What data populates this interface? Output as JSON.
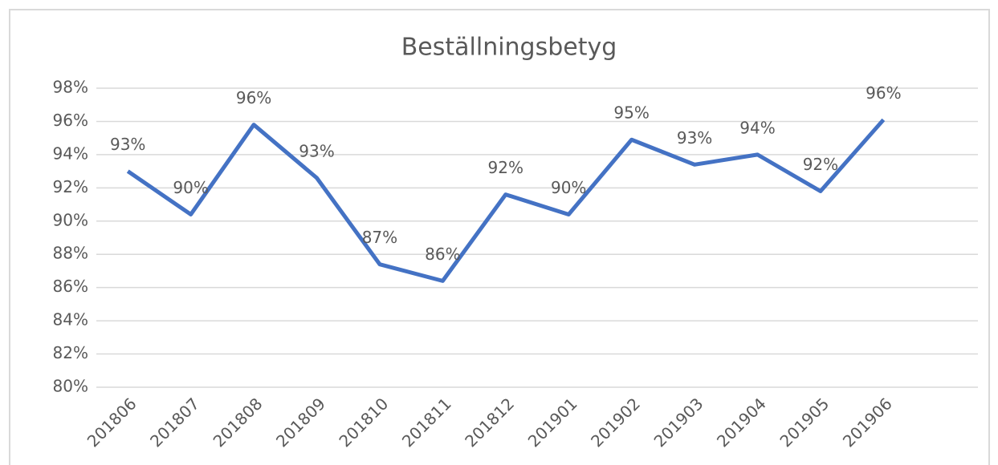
{
  "chart_data": {
    "type": "line",
    "title": "Beställningsbetyg",
    "categories": [
      "201806",
      "201807",
      "201808",
      "201809",
      "201810",
      "201811",
      "201812",
      "201901",
      "201902",
      "201903",
      "201904",
      "201905",
      "201906",
      null
    ],
    "series": [
      {
        "color": "#4472c4",
        "values": [
          93.0,
          90.4,
          95.8,
          92.6,
          87.4,
          86.4,
          91.6,
          90.4,
          94.9,
          93.4,
          94.0,
          91.8,
          96.1,
          null
        ],
        "value_labels": [
          "93%",
          "90%",
          "96%",
          "93%",
          "87%",
          "86%",
          "92%",
          "90%",
          "95%",
          "93%",
          "94%",
          "92%",
          "96%",
          null
        ]
      }
    ],
    "ylim": [
      80,
      98
    ],
    "yticks": [
      {
        "value": 80,
        "label": "80%"
      },
      {
        "value": 82,
        "label": "82%"
      },
      {
        "value": 84,
        "label": "84%"
      },
      {
        "value": 86,
        "label": "86%"
      },
      {
        "value": 88,
        "label": "88%"
      },
      {
        "value": 90,
        "label": "90%"
      },
      {
        "value": 92,
        "label": "92%"
      },
      {
        "value": 94,
        "label": "94%"
      },
      {
        "value": 96,
        "label": "96%"
      },
      {
        "value": 98,
        "label": "98%"
      }
    ],
    "grid": true
  }
}
